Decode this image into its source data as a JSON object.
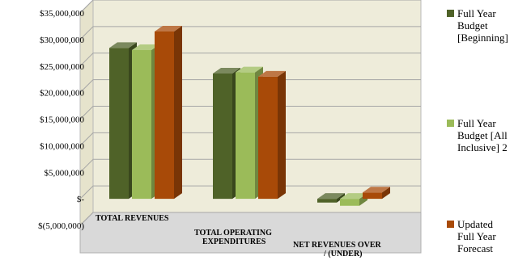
{
  "chart_data": {
    "type": "bar",
    "title": "",
    "xlabel": "",
    "ylabel": "",
    "categories": [
      "TOTAL REVENUES",
      "TOTAL OPERATING EXPENDITURES",
      "NET REVENUES OVER / (UNDER)"
    ],
    "series": [
      {
        "name": "Full Year Budget [Beginning]",
        "values": [
          28400000,
          23600000,
          -700000
        ],
        "color": "#4f6228"
      },
      {
        "name": "Full Year Budget [All Inclusive] 2",
        "values": [
          28000000,
          23800000,
          -1300000
        ],
        "color": "#9bbb59"
      },
      {
        "name": "Updated Full Year Forecast",
        "values": [
          31500000,
          23000000,
          1200000
        ],
        "color": "#a84a08"
      }
    ],
    "yticks": [
      "$(5,000,000)",
      "$-",
      "$5,000,000",
      "$10,000,000",
      "$15,000,000",
      "$20,000,000",
      "$25,000,000",
      "$30,000,000",
      "$35,000,000"
    ],
    "ylim": [
      -5000000,
      35000000
    ],
    "grid": true,
    "legend": "right",
    "wall_color": "#eeecda",
    "floor_color": "#d9d9d9"
  }
}
